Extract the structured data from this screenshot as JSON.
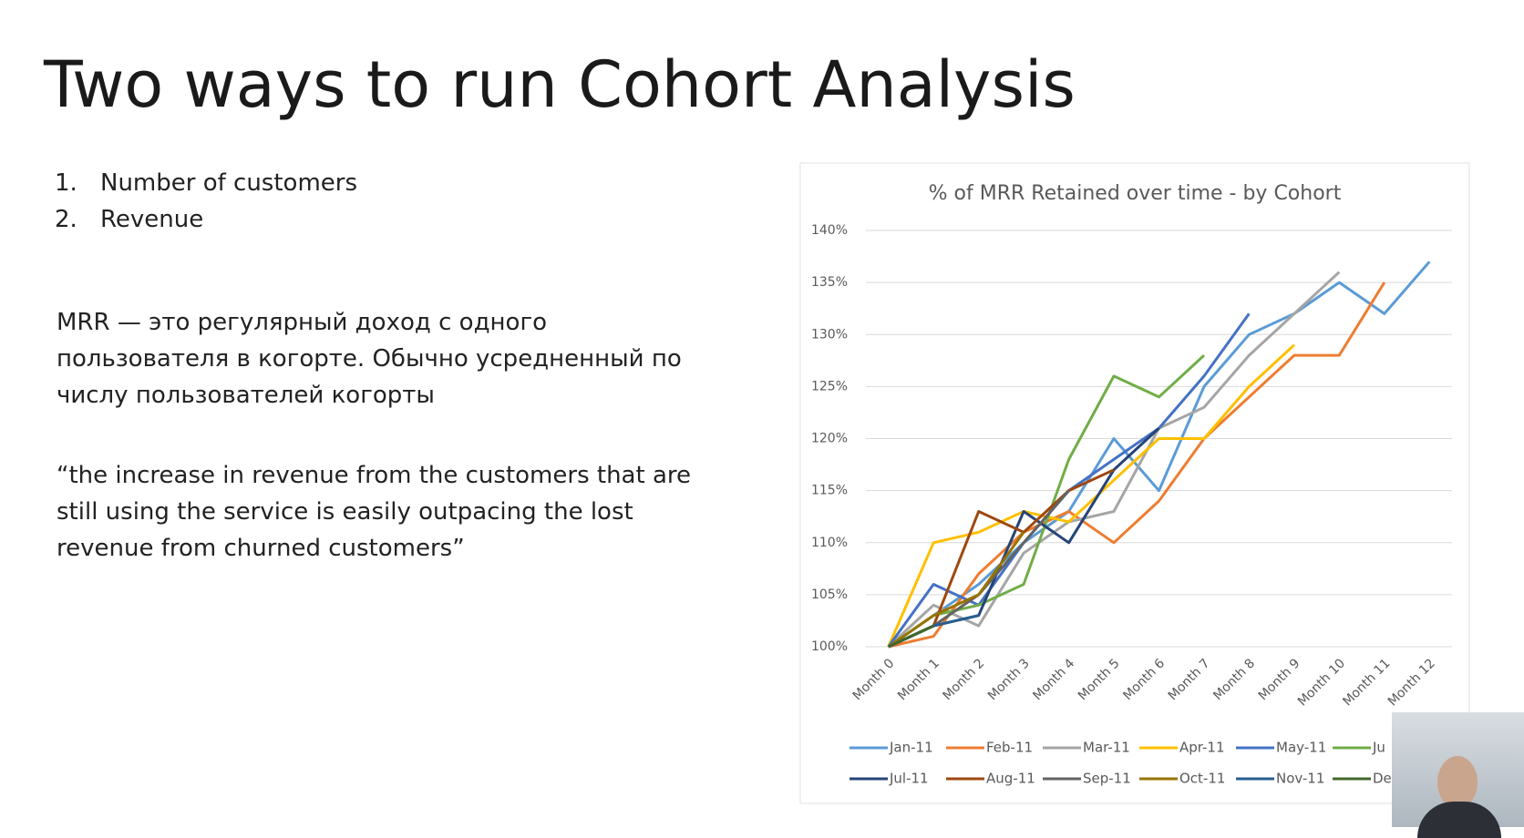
{
  "slide": {
    "title": "Two ways to run Cohort Analysis",
    "list": [
      {
        "num": "1.",
        "text": "Number of customers"
      },
      {
        "num": "2.",
        "text": "Revenue"
      }
    ],
    "paragraphs": [
      [
        "MRR — это регулярный доход с одного",
        "пользователя в когорте. Обычно усредненный по",
        "числу пользователей когорты"
      ],
      [
        "“the increase in revenue from the customers that are",
        "still using the service is easily outpacing the lost",
        "revenue from churned customers”"
      ]
    ]
  },
  "chart_data": {
    "type": "line",
    "title": "% of MRR Retained over time - by Cohort",
    "categories": [
      "Month 0",
      "Month 1",
      "Month 2",
      "Month 3",
      "Month 4",
      "Month 5",
      "Month 6",
      "Month 7",
      "Month 8",
      "Month 9",
      "Month 10",
      "Month 11",
      "Month 12"
    ],
    "ylim": [
      100,
      140
    ],
    "yticks": [
      {
        "value": 100,
        "label": "100%"
      },
      {
        "value": 105,
        "label": "105%"
      },
      {
        "value": 110,
        "label": "110%"
      },
      {
        "value": 115,
        "label": "115%"
      },
      {
        "value": 120,
        "label": "120%"
      },
      {
        "value": 125,
        "label": "125%"
      },
      {
        "value": 130,
        "label": "130%"
      },
      {
        "value": 135,
        "label": "135%"
      },
      {
        "value": 140,
        "label": "140%"
      }
    ],
    "grid": true,
    "legend": "bottom",
    "series": [
      {
        "name": "Jan-11",
        "color": "#5b9bd5",
        "values": [
          100,
          103,
          106,
          110,
          113,
          120,
          115,
          125,
          130,
          132,
          135,
          132,
          137
        ]
      },
      {
        "name": "Feb-11",
        "color": "#ed7d31",
        "values": [
          100,
          101,
          107,
          111,
          113,
          110,
          114,
          120,
          124,
          128,
          128,
          135,
          null
        ]
      },
      {
        "name": "Mar-11",
        "color": "#a5a5a5",
        "values": [
          100,
          104,
          102,
          109,
          112,
          113,
          121,
          123,
          128,
          132,
          136,
          null,
          null
        ]
      },
      {
        "name": "Apr-11",
        "color": "#ffc000",
        "values": [
          100,
          110,
          111,
          113,
          112,
          116,
          120,
          120,
          125,
          129,
          null,
          null,
          null
        ]
      },
      {
        "name": "May-11",
        "color": "#4472c4",
        "values": [
          100,
          106,
          104,
          110,
          115,
          118,
          121,
          126,
          132,
          null,
          null,
          null,
          null
        ]
      },
      {
        "name": "Ju",
        "color": "#70ad47",
        "values": [
          100,
          103,
          104,
          106,
          118,
          126,
          124,
          128,
          null,
          null,
          null,
          null,
          null
        ]
      },
      {
        "name": "Jul-11",
        "color": "#264478",
        "values": [
          100,
          102,
          103,
          113,
          110,
          117,
          121,
          null,
          null,
          null,
          null,
          null,
          null
        ]
      },
      {
        "name": "Aug-11",
        "color": "#9e480e",
        "values": [
          100,
          102,
          113,
          111,
          115,
          117,
          null,
          null,
          null,
          null,
          null,
          null,
          null
        ]
      },
      {
        "name": "Sep-11",
        "color": "#636363",
        "values": [
          100,
          102,
          105,
          110,
          115,
          null,
          null,
          null,
          null,
          null,
          null,
          null,
          null
        ]
      },
      {
        "name": "Oct-11",
        "color": "#997300",
        "values": [
          100,
          103,
          105,
          111,
          null,
          null,
          null,
          null,
          null,
          null,
          null,
          null,
          null
        ]
      },
      {
        "name": "Nov-11",
        "color": "#255e91",
        "values": [
          100,
          102,
          103,
          null,
          null,
          null,
          null,
          null,
          null,
          null,
          null,
          null,
          null
        ]
      },
      {
        "name": "De",
        "color": "#43682b",
        "values": [
          100,
          102,
          null,
          null,
          null,
          null,
          null,
          null,
          null,
          null,
          null,
          null,
          null
        ]
      }
    ]
  }
}
